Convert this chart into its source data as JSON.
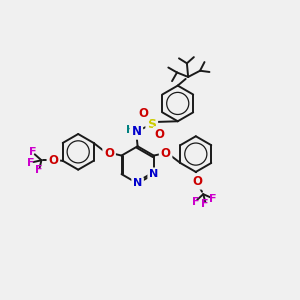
{
  "background_color": "#f0f0f0",
  "bond_color": "#1a1a1a",
  "N_color": "#0000cc",
  "O_color": "#cc0000",
  "S_color": "#cccc00",
  "F_color": "#cc00cc",
  "H_color": "#008080",
  "figsize": [
    3.0,
    3.0
  ],
  "dpi": 100,
  "xlim": [
    0,
    12
  ],
  "ylim": [
    0,
    12
  ]
}
